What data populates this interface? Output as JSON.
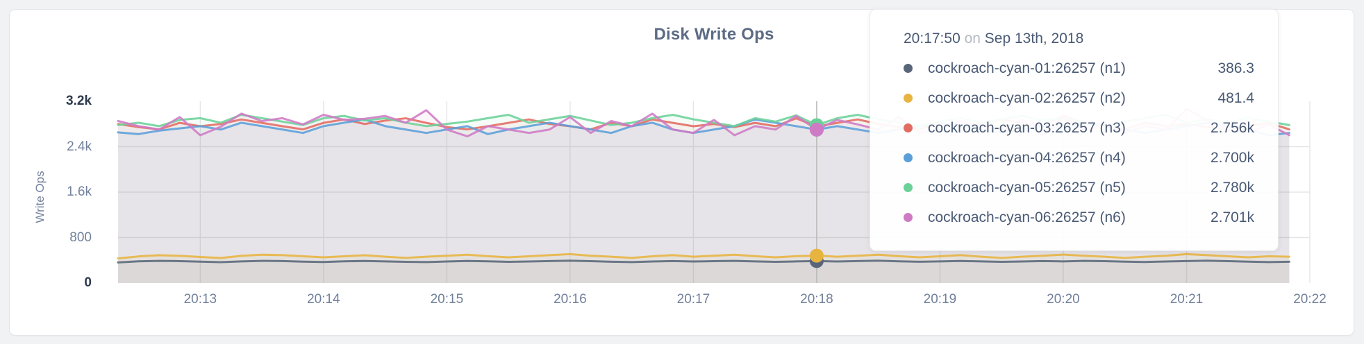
{
  "tooltip": {
    "time": "20:17:50",
    "connector": "on",
    "date": "Sep 13th, 2018",
    "rows": [
      {
        "name": "cockroach-cyan-01:26257 (n1)",
        "value": "386.3"
      },
      {
        "name": "cockroach-cyan-02:26257 (n2)",
        "value": "481.4"
      },
      {
        "name": "cockroach-cyan-03:26257 (n3)",
        "value": "2.756k"
      },
      {
        "name": "cockroach-cyan-04:26257 (n4)",
        "value": "2.700k"
      },
      {
        "name": "cockroach-cyan-05:26257 (n5)",
        "value": "2.780k"
      },
      {
        "name": "cockroach-cyan-06:26257 (n6)",
        "value": "2.701k"
      }
    ]
  },
  "chart_data": {
    "type": "line",
    "title": "Disk Write Ops",
    "ylabel": "Write Ops",
    "ylim": [
      0,
      3200
    ],
    "grid": true,
    "legend_position": "tooltip-top-right",
    "hover_index": 34,
    "hover_time_label": "20:17:50 on Sep 13th, 2018",
    "sample_interval_seconds": 10,
    "y_ticks": [
      {
        "label": "3.2k",
        "value": 3200
      },
      {
        "label": "2.4k",
        "value": 2400
      },
      {
        "label": "1.6k",
        "value": 1600
      },
      {
        "label": "800",
        "value": 800
      },
      {
        "label": "0",
        "value": 0
      }
    ],
    "x_ticks": [
      {
        "label": "20:13",
        "index": 4
      },
      {
        "label": "20:14",
        "index": 10
      },
      {
        "label": "20:15",
        "index": 16
      },
      {
        "label": "20:16",
        "index": 22
      },
      {
        "label": "20:17",
        "index": 28
      },
      {
        "label": "20:18",
        "index": 34
      },
      {
        "label": "20:19",
        "index": 40
      },
      {
        "label": "20:20",
        "index": 46
      },
      {
        "label": "20:21",
        "index": 52
      },
      {
        "label": "20:22",
        "index": 58
      }
    ],
    "series": [
      {
        "name": "cockroach-cyan-01:26257 (n1)",
        "color": "#596679",
        "hover_value": 386.3,
        "values": [
          362,
          381,
          390,
          385,
          376,
          366,
          380,
          390,
          386,
          375,
          370,
          381,
          388,
          380,
          372,
          368,
          378,
          388,
          381,
          372,
          378,
          386,
          392,
          384,
          374,
          368,
          378,
          386,
          378,
          384,
          390,
          380,
          372,
          380,
          386.3,
          378,
          386,
          392,
          382,
          374,
          380,
          388,
          380,
          372,
          378,
          386,
          380,
          390,
          384,
          376,
          370,
          378,
          386,
          392,
          384,
          376,
          368,
          374
        ]
      },
      {
        "name": "cockroach-cyan-02:26257 (n2)",
        "color": "#e8b440",
        "hover_value": 481.4,
        "values": [
          432,
          468,
          488,
          478,
          458,
          440,
          478,
          498,
          490,
          470,
          452,
          470,
          488,
          462,
          442,
          462,
          480,
          498,
          472,
          452,
          470,
          490,
          508,
          480,
          462,
          442,
          470,
          490,
          462,
          480,
          498,
          472,
          452,
          472,
          481.4,
          462,
          480,
          498,
          472,
          452,
          470,
          490,
          462,
          442,
          462,
          480,
          500,
          480,
          462,
          442,
          462,
          480,
          508,
          490,
          470,
          452,
          470,
          462
        ]
      },
      {
        "name": "cockroach-cyan-03:26257 (n3)",
        "color": "#e26b62",
        "hover_value": 2756,
        "values": [
          2800,
          2745,
          2705,
          2820,
          2760,
          2800,
          2880,
          2820,
          2760,
          2705,
          2820,
          2880,
          2800,
          2860,
          2900,
          2820,
          2745,
          2705,
          2760,
          2820,
          2880,
          2800,
          2760,
          2705,
          2820,
          2760,
          2880,
          2820,
          2760,
          2800,
          2745,
          2820,
          2760,
          2900,
          2756,
          2820,
          2880,
          2800,
          2745,
          2705,
          2820,
          2760,
          2800,
          2880,
          2820,
          2760,
          2945,
          2820,
          2760,
          2705,
          2820,
          2760,
          2800,
          2745,
          2705,
          2760,
          2820,
          2705
        ]
      },
      {
        "name": "cockroach-cyan-04:26257 (n4)",
        "color": "#5b9fd9",
        "hover_value": 2700,
        "values": [
          2652,
          2622,
          2682,
          2722,
          2762,
          2702,
          2822,
          2762,
          2702,
          2642,
          2762,
          2822,
          2878,
          2762,
          2702,
          2642,
          2702,
          2762,
          2622,
          2702,
          2762,
          2822,
          2762,
          2702,
          2642,
          2762,
          2822,
          2702,
          2642,
          2702,
          2762,
          2878,
          2822,
          2762,
          2700,
          2762,
          2702,
          2642,
          2702,
          2762,
          2822,
          2762,
          2702,
          2642,
          2702,
          2762,
          2702,
          2822,
          2762,
          2702,
          2642,
          2702,
          2762,
          2822,
          2762,
          2702,
          2602,
          2642
        ]
      },
      {
        "name": "cockroach-cyan-05:26257 (n5)",
        "color": "#6bd199",
        "hover_value": 2780,
        "values": [
          2782,
          2822,
          2762,
          2872,
          2902,
          2822,
          2962,
          2902,
          2842,
          2782,
          2902,
          2942,
          2862,
          2902,
          2822,
          2762,
          2802,
          2842,
          2902,
          2962,
          2822,
          2882,
          2942,
          2862,
          2782,
          2822,
          2902,
          2962,
          2882,
          2822,
          2762,
          2902,
          2842,
          2952,
          2780,
          2902,
          2962,
          2882,
          2822,
          2762,
          2842,
          2902,
          2822,
          2882,
          2942,
          2862,
          2902,
          2822,
          2762,
          2842,
          2902,
          2962,
          2822,
          2882,
          2822,
          2902,
          2842,
          2782
        ]
      },
      {
        "name": "cockroach-cyan-06:26257 (n6)",
        "color": "#cf7ac5",
        "hover_value": 2701,
        "values": [
          2852,
          2762,
          2702,
          2922,
          2602,
          2752,
          2982,
          2852,
          2902,
          2792,
          2962,
          2872,
          2892,
          2942,
          2822,
          3042,
          2702,
          2582,
          2762,
          2702,
          2642,
          2702,
          2922,
          2642,
          2852,
          2762,
          2982,
          2702,
          2642,
          2872,
          2602,
          2762,
          2702,
          2942,
          2701,
          2872,
          2792,
          2702,
          2922,
          2642,
          2702,
          2852,
          2762,
          2702,
          2872,
          2602,
          2922,
          2702,
          2792,
          2642,
          2762,
          2702,
          3062,
          2872,
          2702,
          2642,
          2792,
          2602
        ]
      }
    ],
    "style": {
      "grid_color": "#e5e5e5",
      "hover_line_color": "#bcbcbc",
      "line_width": 3,
      "fill_opacity": 0.07,
      "axis_text_color": "#71809b",
      "axis_text_emphasis_color": "#2e3a4e",
      "title_color": "#5c6b85"
    }
  }
}
